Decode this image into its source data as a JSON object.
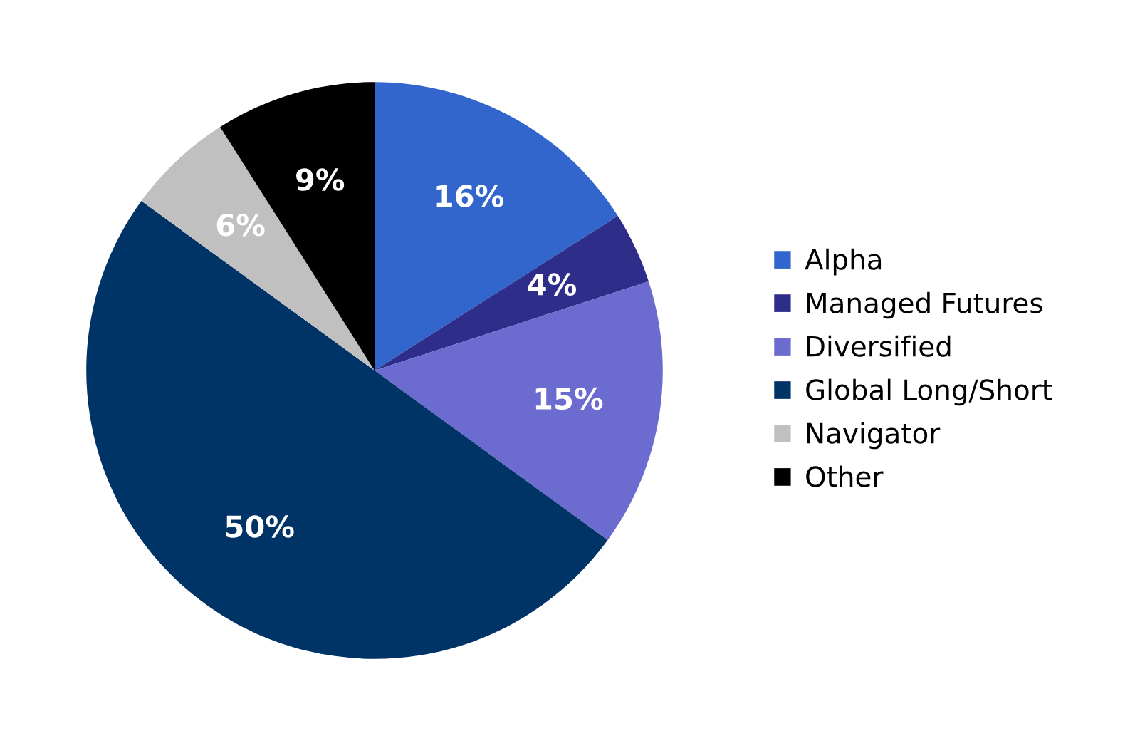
{
  "chart_data": {
    "type": "pie",
    "categories": [
      "Alpha",
      "Managed Futures",
      "Diversified",
      "Global Long/Short",
      "Navigator",
      "Other"
    ],
    "values": [
      16,
      4,
      15,
      50,
      6,
      9
    ],
    "value_labels": [
      "16%",
      "4%",
      "15%",
      "50%",
      "6%",
      "9%"
    ],
    "colors": [
      "#3366cc",
      "#2e2e8a",
      "#6b6bd0",
      "#003366",
      "#c0c0c0",
      "#000000"
    ],
    "legend": "right"
  }
}
